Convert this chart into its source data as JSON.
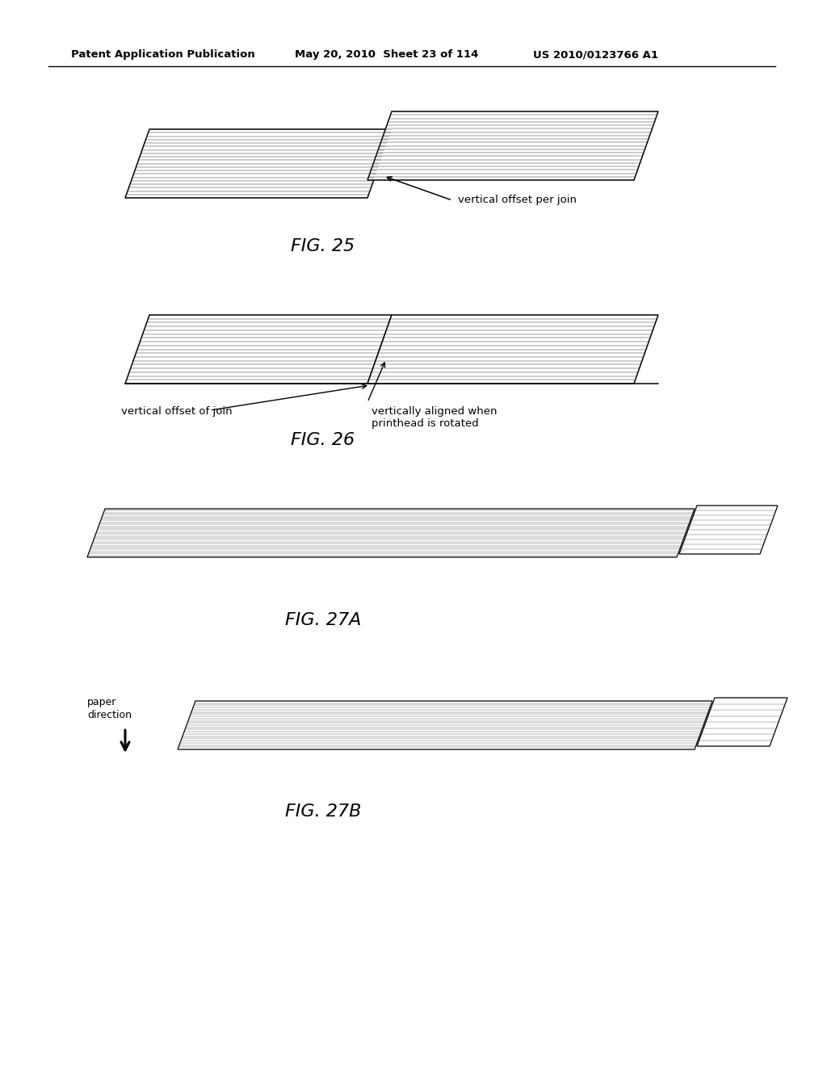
{
  "bg_color": "#ffffff",
  "header_left": "Patent Application Publication",
  "header_mid": "May 20, 2010  Sheet 23 of 114",
  "header_right": "US 2010/0123766 A1",
  "fig25_label": "FIG. 25",
  "fig26_label": "FIG. 26",
  "fig27a_label": "FIG. 27A",
  "fig27b_label": "FIG. 27B",
  "label_vertical_offset_per_join": "vertical offset per join",
  "label_vertical_offset_of_join": "vertical offset of join",
  "label_vertically_aligned": "vertically aligned when\nprinthead is rotated",
  "label_paper_direction": "paper\ndirection"
}
